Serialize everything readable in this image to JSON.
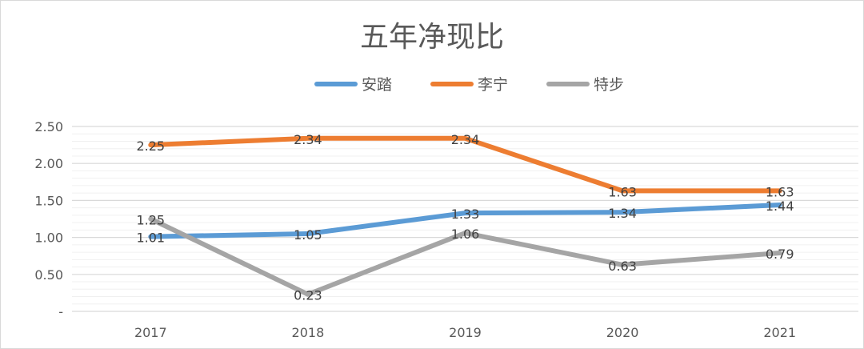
{
  "chart_data": {
    "type": "line",
    "title": "五年净现比",
    "categories": [
      "2017",
      "2018",
      "2019",
      "2020",
      "2021"
    ],
    "series": [
      {
        "name": "安踏",
        "color": "#5b9bd5",
        "values": [
          1.01,
          1.05,
          1.33,
          1.34,
          1.44
        ]
      },
      {
        "name": "李宁",
        "color": "#ed7d31",
        "values": [
          2.25,
          2.34,
          2.34,
          1.63,
          1.63
        ]
      },
      {
        "name": "特步",
        "color": "#a5a5a5",
        "values": [
          1.25,
          0.23,
          1.06,
          0.63,
          0.79
        ]
      }
    ],
    "ylim": [
      0,
      2.5
    ],
    "yticks": [
      0,
      0.5,
      1.0,
      1.5,
      2.0,
      2.5
    ],
    "ytick_labels": [
      "-",
      "0.50",
      "1.00",
      "1.50",
      "2.00",
      "2.50"
    ],
    "grid": true,
    "minor_grid_step": 0.1,
    "legend": "top",
    "data_labels": true
  }
}
